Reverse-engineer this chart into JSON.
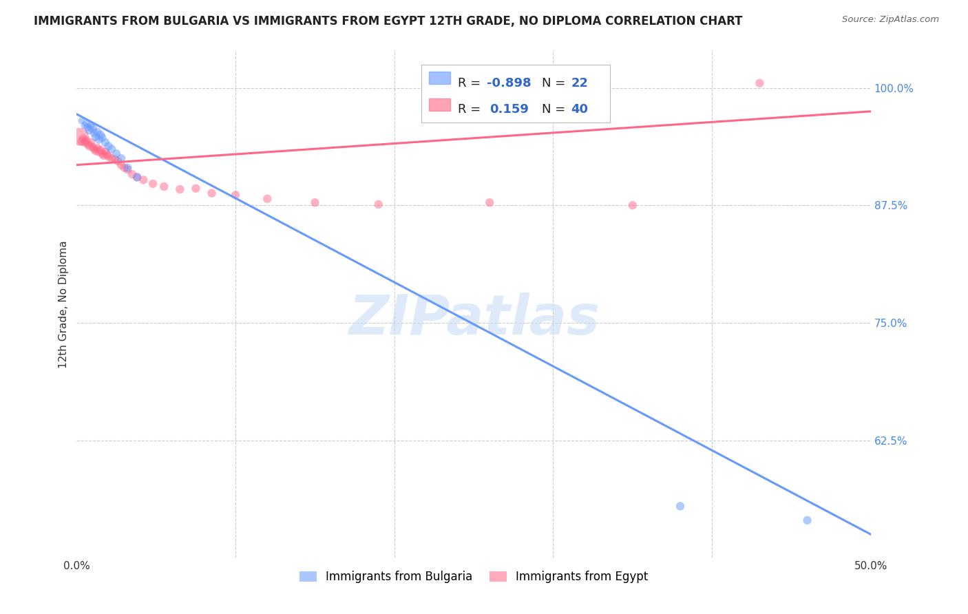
{
  "title": "IMMIGRANTS FROM BULGARIA VS IMMIGRANTS FROM EGYPT 12TH GRADE, NO DIPLOMA CORRELATION CHART",
  "source": "Source: ZipAtlas.com",
  "ylabel": "12th Grade, No Diploma",
  "x_min": 0.0,
  "x_max": 0.5,
  "y_min": 0.5,
  "y_max": 1.04,
  "x_ticks": [
    0.0,
    0.1,
    0.2,
    0.3,
    0.4,
    0.5
  ],
  "x_tick_labels": [
    "0.0%",
    "",
    "",
    "",
    "",
    "50.0%"
  ],
  "y_ticks": [
    0.625,
    0.75,
    0.875,
    1.0
  ],
  "y_tick_labels": [
    "62.5%",
    "75.0%",
    "87.5%",
    "100.0%"
  ],
  "bulgaria_color": "#6699ff",
  "egypt_color": "#ff6688",
  "bulgaria_R": -0.898,
  "bulgaria_N": 22,
  "egypt_R": 0.159,
  "egypt_N": 40,
  "watermark": "ZIPatlas",
  "background_color": "#ffffff",
  "grid_color": "#cccccc",
  "bulgaria_scatter_x": [
    0.003,
    0.005,
    0.006,
    0.007,
    0.008,
    0.009,
    0.01,
    0.011,
    0.012,
    0.013,
    0.014,
    0.015,
    0.016,
    0.018,
    0.02,
    0.022,
    0.025,
    0.028,
    0.032,
    0.038,
    0.38,
    0.46
  ],
  "bulgaria_scatter_y": [
    0.965,
    0.96,
    0.962,
    0.958,
    0.955,
    0.96,
    0.957,
    0.952,
    0.948,
    0.953,
    0.945,
    0.95,
    0.947,
    0.942,
    0.938,
    0.935,
    0.93,
    0.925,
    0.915,
    0.905,
    0.555,
    0.54
  ],
  "bulgaria_scatter_sizes": [
    50,
    60,
    60,
    70,
    80,
    70,
    90,
    80,
    80,
    80,
    80,
    80,
    80,
    80,
    80,
    80,
    80,
    80,
    80,
    80,
    80,
    80
  ],
  "egypt_scatter_x": [
    0.002,
    0.003,
    0.004,
    0.005,
    0.006,
    0.007,
    0.008,
    0.009,
    0.01,
    0.011,
    0.012,
    0.013,
    0.014,
    0.015,
    0.016,
    0.017,
    0.018,
    0.019,
    0.02,
    0.022,
    0.024,
    0.026,
    0.028,
    0.03,
    0.032,
    0.035,
    0.038,
    0.042,
    0.048,
    0.055,
    0.065,
    0.075,
    0.085,
    0.1,
    0.12,
    0.15,
    0.19,
    0.26,
    0.35,
    0.43
  ],
  "egypt_scatter_y": [
    0.948,
    0.943,
    0.946,
    0.942,
    0.944,
    0.94,
    0.938,
    0.942,
    0.937,
    0.935,
    0.933,
    0.936,
    0.932,
    0.934,
    0.93,
    0.928,
    0.932,
    0.929,
    0.927,
    0.925,
    0.924,
    0.922,
    0.918,
    0.915,
    0.913,
    0.908,
    0.905,
    0.902,
    0.898,
    0.895,
    0.892,
    0.893,
    0.888,
    0.886,
    0.882,
    0.878,
    0.876,
    0.878,
    0.875,
    1.005
  ],
  "egypt_scatter_sizes": [
    350,
    80,
    80,
    80,
    80,
    80,
    80,
    80,
    80,
    80,
    80,
    80,
    80,
    80,
    80,
    80,
    80,
    80,
    80,
    80,
    80,
    80,
    80,
    80,
    80,
    80,
    80,
    80,
    80,
    80,
    80,
    80,
    80,
    80,
    80,
    80,
    80,
    80,
    80,
    80
  ],
  "blue_line_x": [
    0.0,
    0.5
  ],
  "blue_line_y": [
    0.972,
    0.525
  ],
  "pink_line_x": [
    0.0,
    0.5
  ],
  "pink_line_y": [
    0.918,
    0.975
  ]
}
